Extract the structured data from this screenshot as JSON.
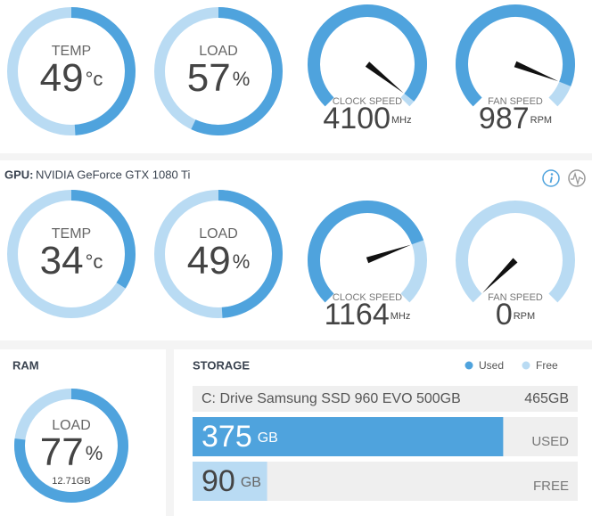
{
  "cpu": {
    "gauges": [
      {
        "kind": "ring",
        "label": "TEMP",
        "value": 49,
        "unit": "°c",
        "range": [
          0,
          100
        ]
      },
      {
        "kind": "ring",
        "label": "LOAD",
        "value": 57,
        "unit": "%",
        "range": [
          0,
          100
        ]
      },
      {
        "kind": "dial",
        "label": "CLOCK SPEED",
        "value": 4100,
        "unit": "MHz",
        "range": [
          0,
          4200
        ]
      },
      {
        "kind": "dial",
        "label": "FAN SPEED",
        "value": 987,
        "unit": "RPM",
        "range": [
          0,
          1080
        ]
      }
    ]
  },
  "gpu": {
    "prefix": "GPU:",
    "name": "NVIDIA GeForce GTX 1080 Ti",
    "gauges": [
      {
        "kind": "ring",
        "label": "TEMP",
        "value": 34,
        "unit": "°c",
        "range": [
          0,
          100
        ]
      },
      {
        "kind": "ring",
        "label": "LOAD",
        "value": 49,
        "unit": "%",
        "range": [
          0,
          100
        ]
      },
      {
        "kind": "dial",
        "label": "CLOCK SPEED",
        "value": 1164,
        "unit": "MHz",
        "range": [
          0,
          1530
        ]
      },
      {
        "kind": "dial",
        "label": "FAN SPEED",
        "value": 0,
        "unit": "RPM",
        "range": [
          0,
          3000
        ]
      }
    ]
  },
  "ram": {
    "title": "RAM",
    "label": "LOAD",
    "value": 77,
    "unit": "%",
    "range": [
      0,
      100
    ],
    "detail": "12.71GB"
  },
  "storage": {
    "title": "STORAGE",
    "legend": {
      "used": "Used",
      "free": "Free"
    },
    "drive": "C: Drive Samsung SSD 960 EVO 500GB",
    "capacity": "465GB",
    "range": [
      0,
      465
    ],
    "used": {
      "value": 375,
      "unit": "GB",
      "label": "USED"
    },
    "free": {
      "value": 90,
      "unit": "GB",
      "label": "FREE"
    }
  }
}
